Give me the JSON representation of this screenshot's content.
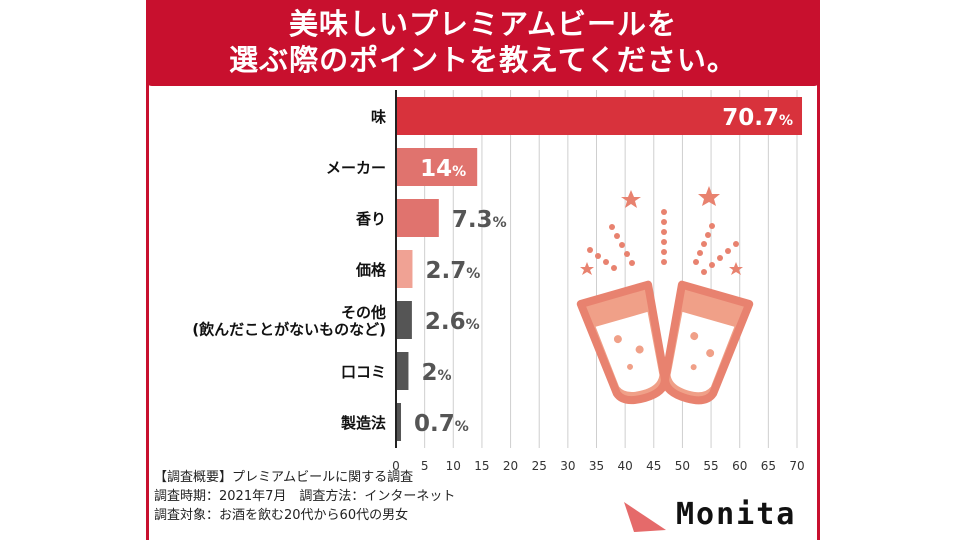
{
  "title_lines": [
    "美味しいプレミアムビールを",
    "選ぶ際のポイントを教えてください。"
  ],
  "colors": {
    "accent": "#c8102e",
    "bar_red": "#d8323c",
    "bar_light_red": "#e0736e",
    "bar_pink": "#f0a294",
    "bar_dark": "#555555",
    "grid": "#cfcfcf"
  },
  "chart_data": {
    "type": "bar",
    "orientation": "horizontal",
    "categories": [
      "味",
      "メーカー",
      "香り",
      "価格",
      "その他\n(飲んだことがないものなど)",
      "口コミ",
      "製造法"
    ],
    "values": [
      70.7,
      14,
      7.3,
      2.7,
      2.6,
      2,
      0.7
    ],
    "value_labels": [
      "70.7",
      "14",
      "7.3",
      "2.7",
      "2.6",
      "2",
      "0.7"
    ],
    "unit": "%",
    "xlim": [
      0,
      70
    ],
    "xticks": [
      0,
      5,
      10,
      15,
      20,
      25,
      30,
      35,
      40,
      45,
      50,
      55,
      60,
      65,
      70
    ],
    "grid": true,
    "title": "美味しいプレミアムビールを選ぶ際のポイントを教えてください。",
    "xlabel": "",
    "ylabel": ""
  },
  "notes": [
    "【調査概要】プレミアムビールに関する調査",
    "調査時期：2021年7月　調査方法：インターネット",
    "調査対象：お酒を飲む20代から60代の男女"
  ],
  "illustration": {
    "icon": "beer-toast-icon"
  },
  "brand": {
    "name": "Monita",
    "icon": "monita-triangle-icon"
  }
}
